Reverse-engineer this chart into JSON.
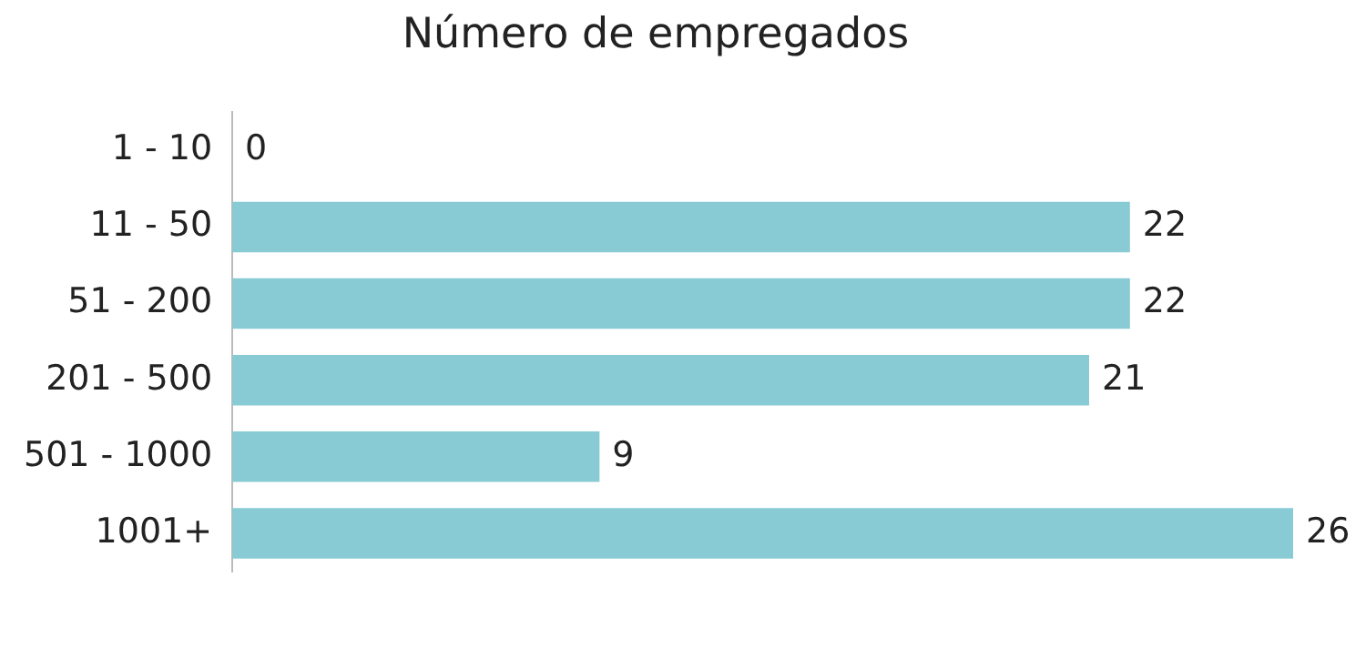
{
  "chart_data": {
    "type": "bar",
    "orientation": "horizontal",
    "title": "Número de empregados",
    "categories": [
      "1 - 10",
      "11 - 50",
      "51 - 200",
      "201 - 500",
      "501 - 1000",
      "1001+"
    ],
    "values": [
      0,
      22,
      22,
      21,
      9,
      26
    ],
    "color": "#88cbd4",
    "data_labels": true
  }
}
